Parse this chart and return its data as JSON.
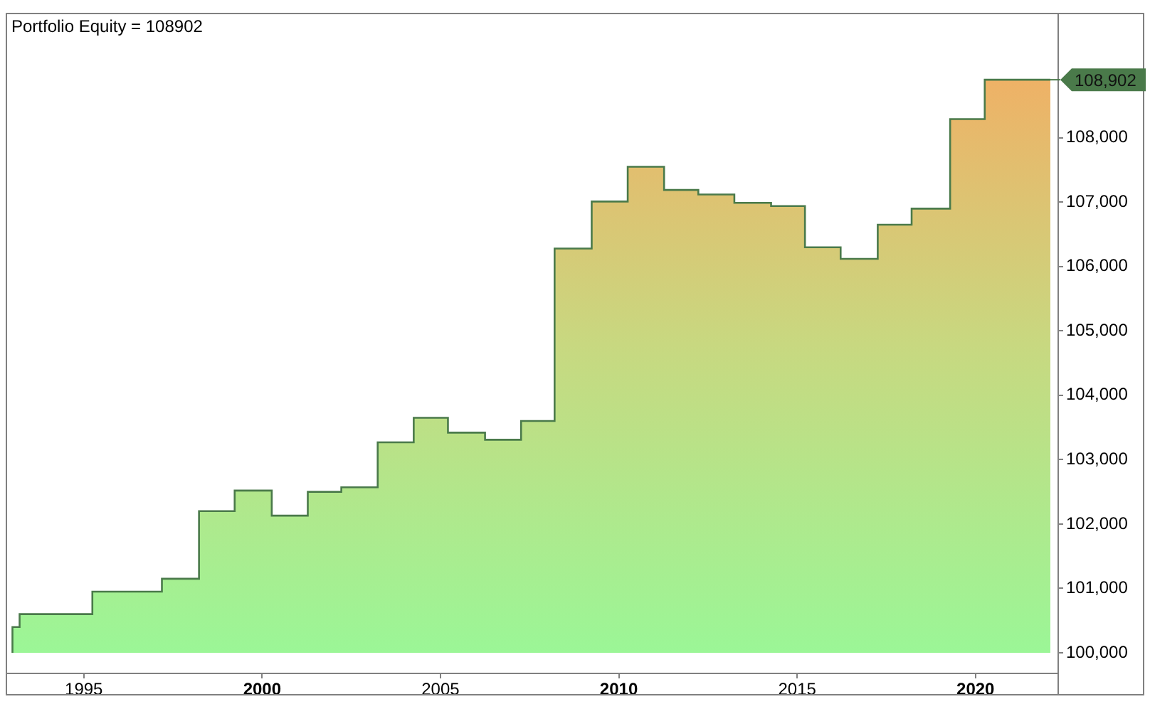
{
  "chart_data": {
    "type": "step",
    "title": "Portfolio Equity = 108902",
    "x": [
      1993.0,
      1993.2,
      1995.24,
      1997.19,
      1998.23,
      1999.23,
      2000.27,
      2001.28,
      2002.22,
      2003.24,
      2004.25,
      2005.21,
      2006.25,
      2007.26,
      2008.2,
      2009.24,
      2010.25,
      2011.27,
      2012.23,
      2013.24,
      2014.27,
      2015.22,
      2016.22,
      2017.26,
      2018.21,
      2019.29,
      2020.26,
      2021.25,
      2022.1
    ],
    "values": [
      100000,
      100400,
      100600,
      100950,
      101150,
      102200,
      102520,
      102130,
      102500,
      102570,
      103270,
      103650,
      103420,
      103310,
      103600,
      106280,
      107010,
      107550,
      107190,
      107120,
      106990,
      106940,
      106300,
      106120,
      106650,
      106900,
      108290,
      108902,
      108902
    ],
    "color": "#4a7a4a",
    "xlim": [
      1992.85,
      2022.3
    ],
    "xticks": [
      1995,
      2000,
      2005,
      2010,
      2015,
      2020
    ],
    "ylim": [
      99690,
      109920
    ],
    "yticks": [
      {
        "value": 100000,
        "label": "100,000"
      },
      {
        "value": 101000,
        "label": "101,000"
      },
      {
        "value": 102000,
        "label": "102,000"
      },
      {
        "value": 103000,
        "label": "103,000"
      },
      {
        "value": 104000,
        "label": "104,000"
      },
      {
        "value": 105000,
        "label": "105,000"
      },
      {
        "value": 106000,
        "label": "106,000"
      },
      {
        "value": 107000,
        "label": "107,000"
      },
      {
        "value": 108000,
        "label": "108,000"
      }
    ],
    "annotations": [
      {
        "text": "108,902",
        "x": 2022.1,
        "y": 108902
      }
    ],
    "grid": false,
    "legend": false
  }
}
